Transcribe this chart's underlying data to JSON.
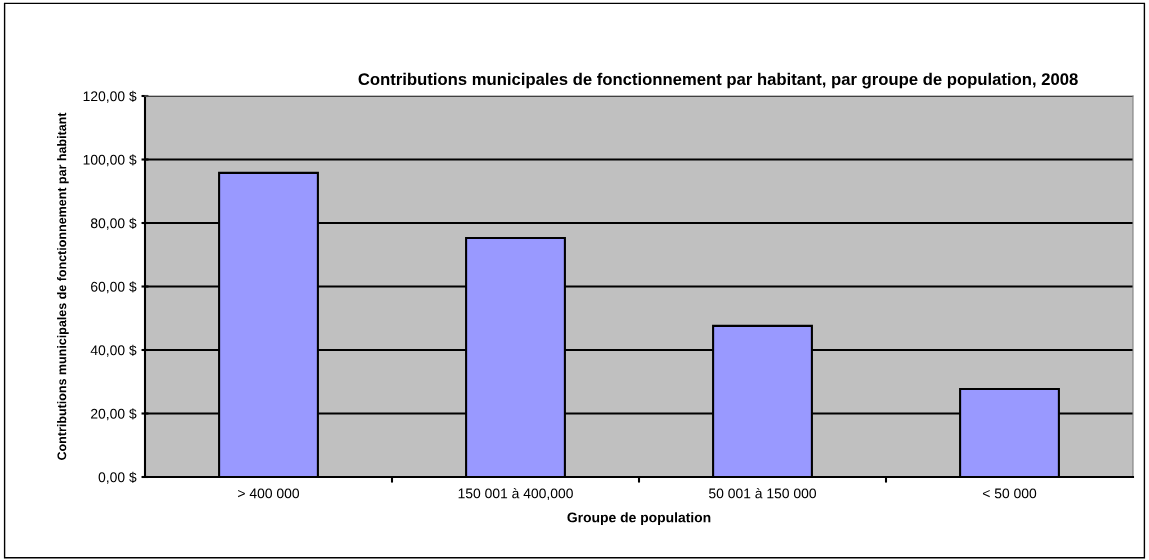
{
  "chart_data": {
    "type": "bar",
    "title": "Contributions municipales de fonctionnement par habitant, par groupe de population, 2008",
    "xlabel": "Groupe de population",
    "ylabel": "Contributions municipales de fonctionnement par habitant",
    "categories": [
      "> 400 000",
      "150 001 à 400,000",
      "50 001 à 150 000",
      "< 50 000"
    ],
    "values": [
      95.8,
      75.3,
      47.6,
      27.7
    ],
    "color": "#9999ff",
    "ylim": [
      0,
      120
    ],
    "yticks": [
      {
        "value": 0,
        "label": "0,00 $"
      },
      {
        "value": 20,
        "label": "20,00 $"
      },
      {
        "value": 40,
        "label": "40,00 $"
      },
      {
        "value": 60,
        "label": "60,00 $"
      },
      {
        "value": 80,
        "label": "80,00 $"
      },
      {
        "value": 100,
        "label": "100,00 $"
      },
      {
        "value": 120,
        "label": "120,00 $"
      }
    ],
    "grid": "y"
  }
}
